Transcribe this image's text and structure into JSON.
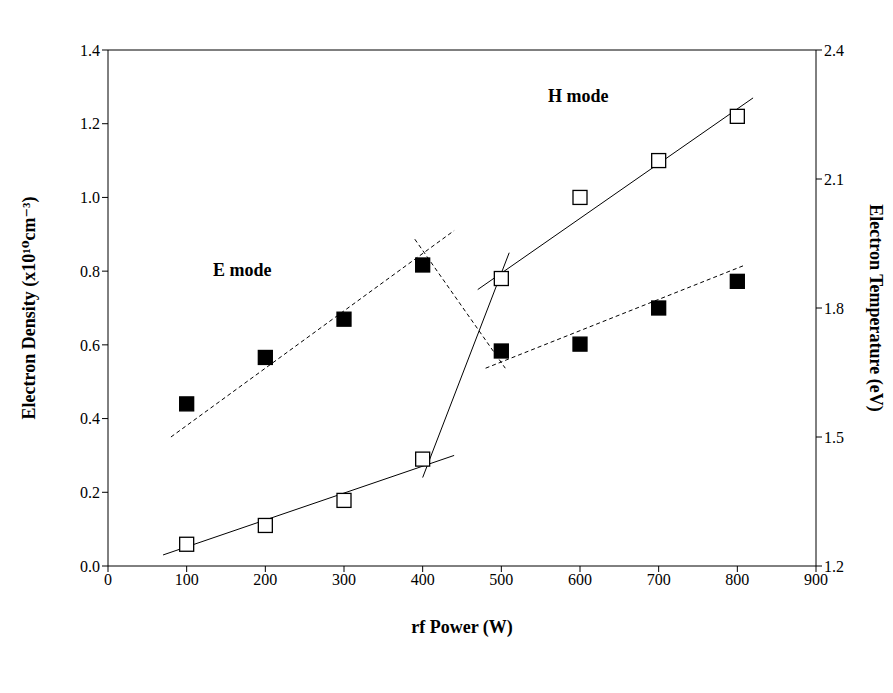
{
  "chart_data": {
    "type": "scatter",
    "x_label": "rf Power (W)",
    "y_label": "Electron Density (x10¹⁰cm⁻³)",
    "y2_label": "Electron Temperature (eV)",
    "annotations": [
      "E mode",
      "H mode"
    ],
    "xlim": [
      0,
      900
    ],
    "xticks": [
      0,
      100,
      200,
      300,
      400,
      500,
      600,
      700,
      800,
      900
    ],
    "ylim": [
      0,
      1.4
    ],
    "yticks": [
      {
        "value": 0,
        "label": "0.0"
      },
      0.2,
      0.4,
      0.6,
      0.8,
      {
        "value": 1,
        "label": "1.0"
      },
      1.2,
      1.4
    ],
    "y2lim": [
      1.2,
      2.4
    ],
    "y2ticks": [
      1.2,
      1.5,
      1.8,
      2.1,
      2.4
    ],
    "grid": false,
    "series": [
      {
        "type": "scatter",
        "marker": "square_open",
        "color": "#000000",
        "x": [
          100,
          200,
          300,
          400,
          500,
          600,
          700,
          800
        ],
        "values": [
          0.059,
          0.11,
          0.178,
          0.29,
          0.78,
          1.0,
          1.1,
          1.22
        ]
      },
      {
        "type": "scatter",
        "marker": "square_filled",
        "color": "#000000",
        "axis": "y2",
        "x": [
          100,
          200,
          300,
          400,
          500,
          600,
          700,
          800
        ],
        "values": [
          1.577,
          1.685,
          1.774,
          1.9,
          1.7,
          1.716,
          1.8,
          1.862
        ]
      },
      {
        "type": "line",
        "line_style": "solid",
        "color": "#000000",
        "x": [
          70,
          440
        ],
        "values": [
          0.03,
          0.3
        ]
      },
      {
        "type": "line",
        "line_style": "solid",
        "color": "#000000",
        "x": [
          400,
          510
        ],
        "values": [
          0.24,
          0.85
        ]
      },
      {
        "type": "line",
        "line_style": "solid",
        "color": "#000000",
        "x": [
          470,
          820
        ],
        "values": [
          0.75,
          1.27
        ]
      },
      {
        "type": "line",
        "line_style": "dashed",
        "color": "#000000",
        "axis": "y2",
        "x": [
          80,
          440
        ],
        "values": [
          1.5,
          1.98
        ]
      },
      {
        "type": "line",
        "line_style": "dashed",
        "color": "#000000",
        "axis": "y2",
        "x": [
          390,
          505
        ],
        "values": [
          1.96,
          1.66
        ]
      },
      {
        "type": "line",
        "line_style": "dashed",
        "color": "#000000",
        "axis": "y2",
        "x": [
          480,
          810
        ],
        "values": [
          1.66,
          1.9
        ]
      }
    ]
  }
}
